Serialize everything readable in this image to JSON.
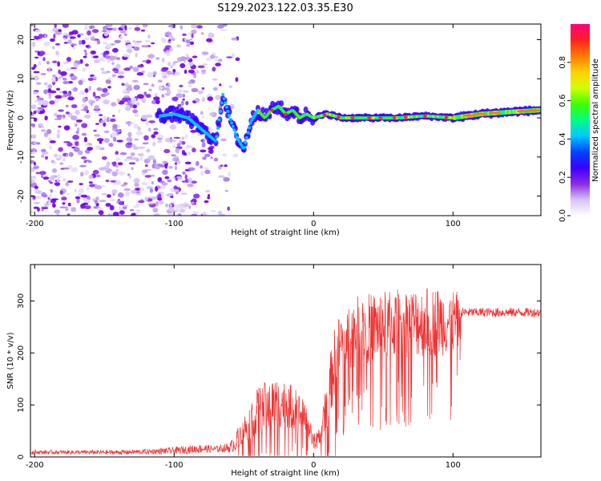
{
  "figure_title": "S129.2023.122.03.35.E30",
  "chart_data": [
    {
      "type": "heatmap",
      "title": "",
      "xlabel": "Height of straight line (km)",
      "ylabel": "Frequency (Hz)",
      "xlim": [
        -203,
        163
      ],
      "ylim": [
        -25,
        24
      ],
      "xticks": [
        -200,
        -100,
        0,
        100
      ],
      "yticks": [
        -20,
        -10,
        0,
        10,
        20
      ],
      "colorbar": {
        "label": "Normalized spectral amplitude",
        "range": [
          0,
          1
        ],
        "ticks": [
          0.0,
          0.2,
          0.4,
          0.6,
          0.8
        ],
        "colormap": "rainbow",
        "colors": [
          "#ffffff",
          "#d6c2f5",
          "#8a2be2",
          "#3a00ff",
          "#0044ff",
          "#00c8ff",
          "#00ff80",
          "#40ff00",
          "#d0ff00",
          "#ffd000",
          "#ff7a00",
          "#ff2020",
          "#ff0080"
        ]
      },
      "noise_region_x": [
        -203,
        -65
      ],
      "signal_track": {
        "x": [
          -110,
          -100,
          -90,
          -80,
          -70,
          -65,
          -60,
          -55,
          -50,
          -45,
          -40,
          -35,
          -30,
          -25,
          -20,
          -15,
          -10,
          -5,
          0,
          10,
          20,
          40,
          60,
          80,
          100,
          120,
          140,
          163
        ],
        "freq": [
          0.5,
          1,
          0,
          -3,
          -6,
          6,
          0,
          -5,
          -8,
          -1,
          2,
          0,
          2,
          3,
          1,
          2,
          0,
          1,
          0,
          1,
          0,
          0,
          0,
          0.5,
          0,
          1,
          1.5,
          2
        ]
      }
    },
    {
      "type": "line",
      "title": "",
      "xlabel": "Height of straight line (km)",
      "ylabel": "SNR (10 * v/v)",
      "xlim": [
        -203,
        163
      ],
      "ylim": [
        0,
        370
      ],
      "xticks": [
        -200,
        -100,
        0,
        100
      ],
      "yticks": [
        0,
        100,
        200,
        300
      ],
      "series": [
        {
          "name": "SNR",
          "color": "#ee3333",
          "x": [
            -203,
            -180,
            -160,
            -140,
            -120,
            -100,
            -90,
            -80,
            -70,
            -60,
            -55,
            -50,
            -45,
            -40,
            -35,
            -30,
            -25,
            -20,
            -15,
            -10,
            -5,
            0,
            5,
            10,
            15,
            20,
            25,
            30,
            35,
            40,
            50,
            60,
            70,
            80,
            90,
            100,
            104,
            106,
            110,
            120,
            130,
            140,
            150,
            163
          ],
          "base": [
            9,
            9,
            9,
            9,
            10,
            12,
            14,
            16,
            15,
            18,
            30,
            45,
            60,
            75,
            80,
            88,
            90,
            88,
            82,
            75,
            60,
            30,
            35,
            95,
            160,
            200,
            215,
            220,
            225,
            228,
            232,
            236,
            238,
            240,
            240,
            242,
            240,
            278,
            278,
            278,
            278,
            278,
            278,
            278
          ],
          "amp": [
            8,
            8,
            8,
            9,
            10,
            14,
            16,
            18,
            12,
            20,
            40,
            60,
            80,
            100,
            110,
            110,
            110,
            100,
            95,
            80,
            60,
            30,
            40,
            120,
            150,
            150,
            150,
            150,
            150,
            150,
            150,
            150,
            150,
            150,
            150,
            140,
            130,
            20,
            18,
            18,
            18,
            18,
            18,
            18
          ]
        }
      ]
    }
  ]
}
